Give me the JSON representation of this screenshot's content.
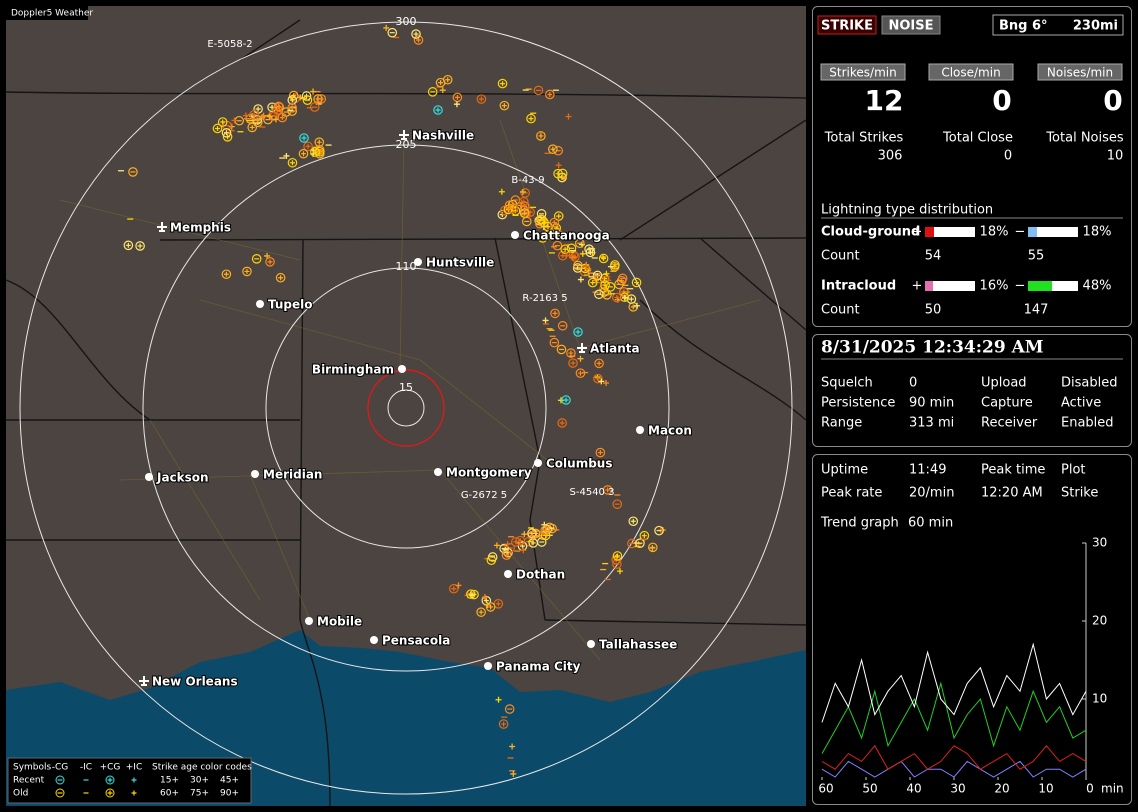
{
  "map": {
    "title": "Doppler5 Weather",
    "ring_labels": [
      300,
      205,
      110,
      15
    ],
    "cities": [
      "Nashville",
      "Memphis",
      "Chattanooga",
      "Huntsville",
      "Tupelo",
      "Atlanta",
      "Birmingham",
      "Macon",
      "Jackson",
      "Meridian",
      "Montgomery",
      "Columbus",
      "Dothan",
      "Mobile",
      "Pensacola",
      "Tallahassee",
      "Panama City",
      "New Orleans"
    ],
    "stations": [
      "E-5058-2",
      "B-43-9",
      "R-2163 5",
      "G-2672 5",
      "S-4540 3"
    ],
    "legend": {
      "symbols_label": "Symbols",
      "symbols": [
        "-CG",
        "-IC",
        "+CG",
        "+IC"
      ],
      "age_title": "Strike age color codes",
      "rows": [
        {
          "label": "Recent",
          "ages": [
            "15+",
            "30+",
            "45+"
          ]
        },
        {
          "label": "Old",
          "ages": [
            "60+",
            "75+",
            "90+"
          ]
        }
      ]
    }
  },
  "status": {
    "modes": [
      "STRIKE",
      "NOISE"
    ],
    "bearing": "Bng 6°",
    "range": "230mi",
    "rates": [
      {
        "label": "Strikes/min",
        "value": 12
      },
      {
        "label": "Close/min",
        "value": 0
      },
      {
        "label": "Noises/min",
        "value": 0
      }
    ],
    "totals": [
      {
        "label": "Total Strikes",
        "value": 306
      },
      {
        "label": "Total Close",
        "value": 0
      },
      {
        "label": "Total Noises",
        "value": 10
      }
    ],
    "distribution": {
      "title": "Lightning type distribution",
      "count_label": "Count",
      "groups": [
        {
          "name": "Cloud-ground",
          "items": [
            {
              "sign": "+",
              "color": "#e01010",
              "percent": {
                "value": 18,
                "label": "18%"
              },
              "count": 54
            },
            {
              "sign": "−",
              "color": "#7fc0f0",
              "percent": {
                "value": 18,
                "label": "18%"
              },
              "count": 55
            }
          ]
        },
        {
          "name": "Intracloud",
          "items": [
            {
              "sign": "+",
              "color": "#e070b0",
              "percent": {
                "value": 16,
                "label": "16%"
              },
              "count": 50
            },
            {
              "sign": "−",
              "color": "#20e020",
              "percent": {
                "value": 48,
                "label": "48%"
              },
              "count": 147
            }
          ]
        }
      ]
    }
  },
  "clock": {
    "datetime": "8/31/2025 12:34:29 AM",
    "settings": [
      {
        "label": "Squelch",
        "value": "0",
        "color": "#ffffff"
      },
      {
        "label": "Upload",
        "value": "Disabled",
        "color": "#c8c8c8"
      },
      {
        "label": "Persistence",
        "value": "90 min",
        "color": "#ffffff"
      },
      {
        "label": "Capture",
        "value": "Active",
        "color": "#30e030"
      },
      {
        "label": "Range",
        "value": "313 mi",
        "color": "#ffffff"
      },
      {
        "label": "Receiver",
        "value": "Enabled",
        "color": "#30e030"
      }
    ]
  },
  "stats": [
    {
      "label": "Uptime",
      "value": "11:49"
    },
    {
      "label": "Peak time",
      "value": "12:20 AM"
    },
    {
      "label": "Plot",
      "value": "Strike"
    },
    {
      "label": "Peak rate",
      "value": "20/min"
    },
    {
      "label": "Trend graph",
      "value": "60 min"
    }
  ],
  "chart_data": {
    "type": "line",
    "x_label": "min",
    "x": [
      60,
      57,
      54,
      51,
      48,
      45,
      42,
      39,
      36,
      33,
      30,
      27,
      24,
      21,
      18,
      15,
      12,
      9,
      6,
      3,
      0
    ],
    "xlim": [
      60,
      0
    ],
    "xticks": [
      60,
      50,
      40,
      30,
      20,
      10,
      0
    ],
    "ylim": [
      0,
      30
    ],
    "yticks": [
      10,
      20,
      30
    ],
    "series": [
      {
        "color": "#ffffff",
        "values": [
          7,
          12,
          9,
          15,
          8,
          11,
          13,
          9,
          16,
          10,
          8,
          12,
          14,
          9,
          13,
          11,
          17,
          10,
          12,
          8,
          11
        ]
      },
      {
        "color": "#20d020",
        "values": [
          3,
          6,
          9,
          5,
          11,
          4,
          7,
          10,
          6,
          12,
          5,
          8,
          10,
          4,
          9,
          6,
          11,
          7,
          9,
          5,
          6
        ]
      },
      {
        "color": "#e02020",
        "values": [
          2,
          1,
          3,
          2,
          4,
          1,
          2,
          3,
          1,
          2,
          4,
          3,
          1,
          2,
          3,
          1,
          2,
          4,
          2,
          3,
          2
        ]
      },
      {
        "color": "#8080ff",
        "values": [
          1,
          0,
          2,
          1,
          0,
          1,
          2,
          0,
          1,
          1,
          0,
          2,
          1,
          0,
          1,
          2,
          0,
          1,
          1,
          0,
          1
        ]
      }
    ]
  }
}
